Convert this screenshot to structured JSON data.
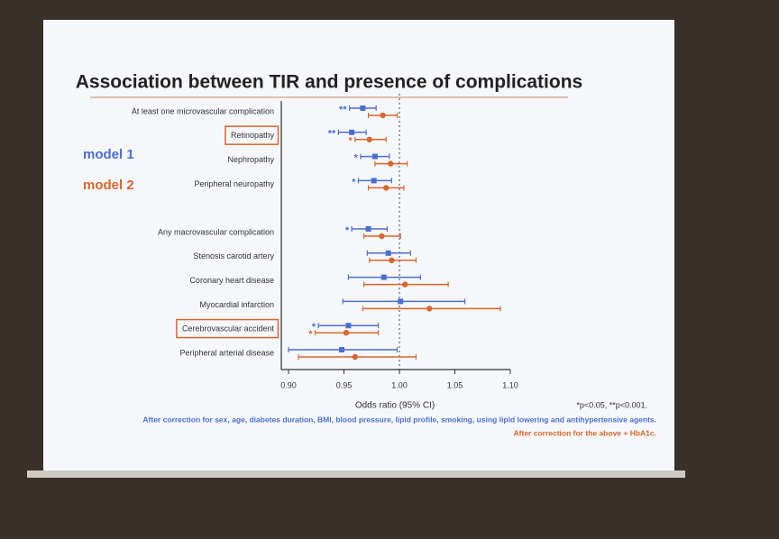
{
  "chart_data": {
    "type": "forest",
    "title": "Association between TIR and presence of complications",
    "categories": [
      "At least one microvascular complication",
      "Retinopathy",
      "Nephropathy",
      "Peripheral neuropathy",
      null,
      "Any macrovascular complication",
      "Stenosis carotid artery",
      "Coronary heart disease",
      "Myocardial infarction",
      "Cerebrovascular accident",
      "Peripheral arterial disease"
    ],
    "boxed_categories": [
      1,
      9
    ],
    "series": [
      {
        "name": "model 1",
        "color": "#4a6fd1",
        "values": [
          0.967,
          0.957,
          0.978,
          0.977,
          null,
          0.972,
          0.99,
          0.986,
          1.001,
          0.954,
          0.948
        ],
        "lower": [
          0.955,
          0.945,
          0.965,
          0.963,
          null,
          0.957,
          0.971,
          0.954,
          0.949,
          0.927,
          0.9
        ],
        "upper": [
          0.979,
          0.97,
          0.991,
          0.993,
          null,
          0.989,
          1.01,
          1.019,
          1.059,
          0.981,
          0.998
        ],
        "marks": [
          "**",
          "**",
          "*",
          "*",
          null,
          "*",
          null,
          null,
          null,
          "*",
          null
        ],
        "note": "After correction for sex, age, diabetes duration, BMI, blood pressure, lipid profile, smoking, using lipid lowering and antihypertensive agents."
      },
      {
        "name": "model 2",
        "color": "#d9662b",
        "values": [
          0.985,
          0.973,
          0.992,
          0.988,
          null,
          0.984,
          0.993,
          1.005,
          1.027,
          0.952,
          0.96
        ],
        "lower": [
          0.972,
          0.96,
          0.978,
          0.972,
          null,
          0.968,
          0.973,
          0.968,
          0.967,
          0.924,
          0.909
        ],
        "upper": [
          0.998,
          0.988,
          1.007,
          1.004,
          null,
          1.001,
          1.015,
          1.044,
          1.091,
          0.981,
          1.015
        ],
        "marks": [
          null,
          "*",
          null,
          null,
          null,
          null,
          null,
          null,
          null,
          "*",
          null
        ],
        "note": "After correction for the above + HbA1c."
      }
    ],
    "xlabel": "Odds ratio (95% CI)",
    "xlim": [
      0.9,
      1.1
    ],
    "xticks": [
      {
        "value": 0.9,
        "label": "0.90"
      },
      {
        "value": 0.95,
        "label": "0.95"
      },
      {
        "value": 1.0,
        "label": "1.00"
      },
      {
        "value": 1.05,
        "label": "1.05"
      },
      {
        "value": 1.1,
        "label": "1.10"
      }
    ],
    "reference_line": 1.0,
    "footnote": "*p<0.05, **p<0.001."
  }
}
